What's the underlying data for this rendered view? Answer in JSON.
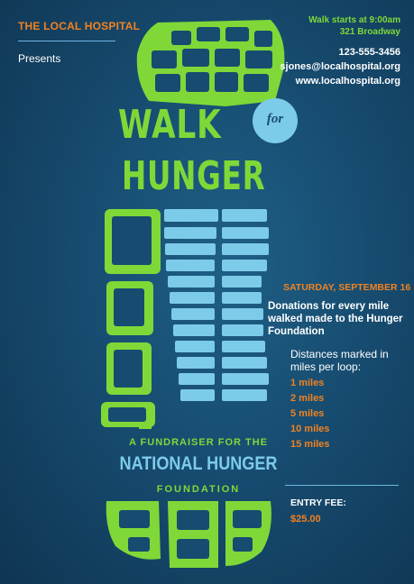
{
  "organizer": {
    "name": "THE LOCAL HOSPITAL",
    "presents": "Presents"
  },
  "walk_info": {
    "start_time": "Walk starts at 9:00am",
    "address": "321 Broadway"
  },
  "contact": {
    "phone": "123-555-3456",
    "email": "sjones@localhospital.org",
    "website": "www.localhospital.org"
  },
  "title": {
    "line1": "WALK",
    "connector": "for",
    "line2": "HUNGER"
  },
  "event": {
    "date": "SATURDAY, SEPTEMBER 16",
    "donations_text": "Donations for every mile walked made to the Hunger Foundation",
    "distances_label": "Distances marked in miles per loop:",
    "distances": [
      "1 miles",
      "2 miles",
      "5 miles",
      "10 miles",
      "15 miles"
    ]
  },
  "entry_fee": {
    "label": "ENTRY FEE:",
    "value": "$25.00"
  },
  "fundraiser": {
    "line1": "A FUNDRAISER FOR THE",
    "line2": "NATIONAL HUNGER",
    "line3": "FOUNDATION"
  },
  "colors": {
    "background": "#174c70",
    "green": "#7fd838",
    "light_blue": "#7ccbe9",
    "orange": "#f2821f"
  }
}
